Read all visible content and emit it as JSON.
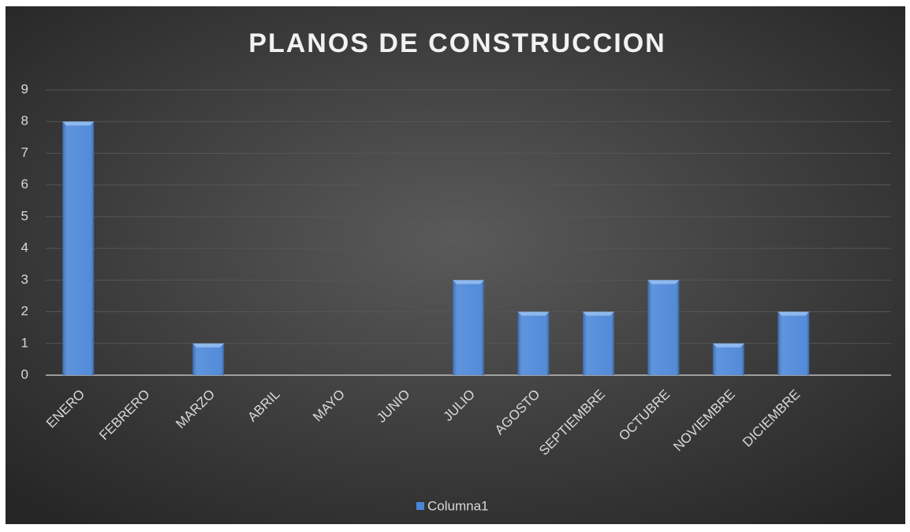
{
  "chart_data": {
    "type": "bar",
    "title": "PLANOS DE CONSTRUCCION",
    "categories": [
      "ENERO",
      "FEBRERO",
      "MARZO",
      "ABRIL",
      "MAYO",
      "JUNIO",
      "JULIO",
      "AGOSTO",
      "SEPTIEMBRE",
      "OCTUBRE",
      "NOVIEMBRE",
      "DICIEMBRE",
      null
    ],
    "series": [
      {
        "name": "Columna1",
        "color": "#4a86d8",
        "values": [
          8,
          0,
          1,
          0,
          0,
          0,
          3,
          2,
          2,
          3,
          1,
          2,
          null
        ]
      }
    ],
    "ylim": [
      0,
      9
    ],
    "yticks": [
      0,
      1,
      2,
      3,
      4,
      5,
      6,
      7,
      8,
      9
    ],
    "grid": true,
    "legend": "bottom"
  }
}
